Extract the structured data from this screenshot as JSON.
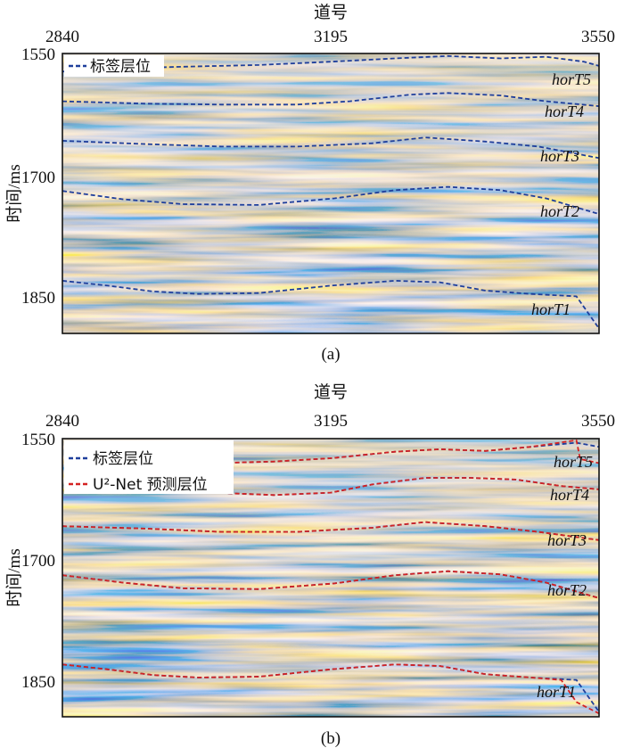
{
  "chart_data": [
    {
      "type": "line",
      "panel_label": "(a)",
      "xlabel": "道号",
      "ylabel": "时间/ms",
      "x_ticks": [
        "2840",
        "3195",
        "3550"
      ],
      "y_ticks": [
        "1550",
        "1700",
        "1850"
      ],
      "xlim": [
        2840,
        3550
      ],
      "ylim": [
        1550,
        1890
      ],
      "background": "seismic-amplitude-section",
      "legend": {
        "position": "top-left",
        "entries": [
          {
            "label": "标签层位",
            "color": "#1f3f9c",
            "style": "dashed"
          }
        ]
      },
      "series": [
        {
          "name": "标签层位",
          "horizon": "horT5",
          "x": [
            2840,
            2920,
            3000,
            3100,
            3195,
            3280,
            3350,
            3420,
            3480,
            3530,
            3550
          ],
          "y": [
            1572,
            1568,
            1566,
            1564,
            1560,
            1556,
            1553,
            1556,
            1554,
            1560,
            1565
          ]
        },
        {
          "name": "标签层位",
          "horizon": "horT4",
          "x": [
            2840,
            2950,
            3050,
            3150,
            3220,
            3300,
            3350,
            3420,
            3480,
            3550
          ],
          "y": [
            1608,
            1611,
            1612,
            1612,
            1608,
            1600,
            1598,
            1601,
            1608,
            1614
          ]
        },
        {
          "name": "标签层位",
          "horizon": "horT3",
          "x": [
            2840,
            2950,
            3050,
            3150,
            3250,
            3320,
            3400,
            3470,
            3550
          ],
          "y": [
            1656,
            1660,
            1663,
            1663,
            1659,
            1652,
            1657,
            1663,
            1677
          ]
        },
        {
          "name": "标签层位",
          "horizon": "horT2",
          "x": [
            2840,
            2920,
            3000,
            3100,
            3200,
            3280,
            3350,
            3420,
            3480,
            3550
          ],
          "y": [
            1717,
            1727,
            1733,
            1734,
            1726,
            1716,
            1712,
            1716,
            1726,
            1745
          ]
        },
        {
          "name": "标签层位",
          "horizon": "horT1",
          "x": [
            2840,
            2900,
            2960,
            3020,
            3100,
            3195,
            3280,
            3340,
            3400,
            3460,
            3520,
            3550
          ],
          "y": [
            1826,
            1832,
            1839,
            1842,
            1841,
            1832,
            1826,
            1828,
            1838,
            1842,
            1845,
            1884
          ]
        }
      ],
      "horizon_labels": [
        "horT5",
        "horT4",
        "horT3",
        "horT2",
        "horT1"
      ]
    },
    {
      "type": "line",
      "panel_label": "(b)",
      "xlabel": "道号",
      "ylabel": "时间/ms",
      "x_ticks": [
        "2840",
        "3195",
        "3550"
      ],
      "y_ticks": [
        "1550",
        "1700",
        "1850"
      ],
      "xlim": [
        2840,
        3550
      ],
      "ylim": [
        1550,
        1890
      ],
      "background": "seismic-amplitude-section",
      "legend": {
        "position": "top-left",
        "entries": [
          {
            "label": "标签层位",
            "color": "#1f3f9c",
            "style": "dashed"
          },
          {
            "label": "U²-Net 预测层位",
            "color": "#d42222",
            "style": "dashed"
          }
        ]
      },
      "series": [
        {
          "name": "标签层位",
          "horizon": "horT5",
          "x": [
            3040,
            3120,
            3195,
            3280,
            3340,
            3400,
            3460,
            3520,
            3550
          ],
          "y": [
            1580,
            1578,
            1574,
            1566,
            1563,
            1565,
            1560,
            1555,
            1560
          ]
        },
        {
          "name": "标签层位",
          "horizon": "horT4",
          "x": [
            3040,
            3120,
            3195,
            3250,
            3320,
            3380,
            3440,
            3500,
            3550
          ],
          "y": [
            1616,
            1619,
            1616,
            1606,
            1598,
            1598,
            1600,
            1608,
            1612
          ]
        },
        {
          "name": "标签层位",
          "horizon": "horT3",
          "x": [
            2840,
            2950,
            3050,
            3150,
            3250,
            3320,
            3400,
            3470,
            3550
          ],
          "y": [
            1657,
            1660,
            1664,
            1664,
            1659,
            1652,
            1657,
            1664,
            1674
          ]
        },
        {
          "name": "标签层位",
          "horizon": "horT2",
          "x": [
            2840,
            2920,
            3000,
            3100,
            3200,
            3280,
            3350,
            3420,
            3480,
            3550
          ],
          "y": [
            1717,
            1726,
            1733,
            1734,
            1727,
            1717,
            1712,
            1716,
            1726,
            1745
          ]
        },
        {
          "name": "标签层位",
          "horizon": "horT1",
          "x": [
            2840,
            2900,
            2960,
            3020,
            3100,
            3195,
            3280,
            3340,
            3400,
            3460,
            3520,
            3550
          ],
          "y": [
            1826,
            1832,
            1839,
            1842,
            1841,
            1832,
            1826,
            1828,
            1838,
            1842,
            1845,
            1884
          ]
        },
        {
          "name": "U²-Net 预测层位",
          "horizon": "horT5",
          "x": [
            3040,
            3120,
            3195,
            3280,
            3340,
            3400,
            3460,
            3520,
            3525,
            3550
          ],
          "y": [
            1580,
            1578,
            1574,
            1566,
            1563,
            1565,
            1560,
            1552,
            1575,
            1580
          ]
        },
        {
          "name": "U²-Net 预测层位",
          "horizon": "horT4",
          "x": [
            3040,
            3120,
            3195,
            3250,
            3320,
            3380,
            3440,
            3500,
            3550
          ],
          "y": [
            1616,
            1619,
            1616,
            1606,
            1598,
            1598,
            1600,
            1608,
            1612
          ]
        },
        {
          "name": "U²-Net 预测层位",
          "horizon": "horT3",
          "x": [
            2840,
            2950,
            3050,
            3150,
            3250,
            3320,
            3400,
            3470,
            3550
          ],
          "y": [
            1657,
            1660,
            1664,
            1664,
            1659,
            1652,
            1657,
            1664,
            1674
          ]
        },
        {
          "name": "U²-Net 预测层位",
          "horizon": "horT2",
          "x": [
            2840,
            2920,
            3000,
            3100,
            3200,
            3280,
            3350,
            3420,
            3480,
            3550
          ],
          "y": [
            1717,
            1726,
            1733,
            1734,
            1727,
            1717,
            1712,
            1716,
            1726,
            1745
          ]
        },
        {
          "name": "U²-Net 预测层位",
          "horizon": "horT1",
          "x": [
            2840,
            2900,
            2960,
            3020,
            3100,
            3195,
            3280,
            3340,
            3400,
            3460,
            3500,
            3520,
            3550
          ],
          "y": [
            1826,
            1832,
            1839,
            1842,
            1841,
            1832,
            1826,
            1828,
            1838,
            1842,
            1845,
            1872,
            1886
          ]
        }
      ],
      "horizon_labels": [
        "horT5",
        "horT4",
        "horT3",
        "horT2",
        "horT1"
      ]
    }
  ]
}
